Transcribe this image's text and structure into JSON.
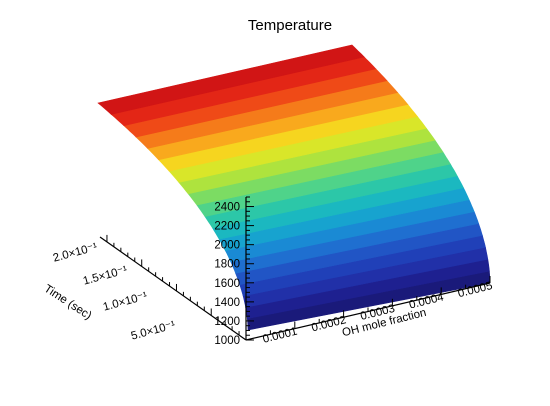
{
  "chart_data": {
    "type": "surface",
    "title": "Temperature",
    "xlabel": "OH mole fraction",
    "ylabel": "Time (sec)",
    "zlabel": "",
    "x_ticks": [
      "0.0001",
      "0.0002",
      "0.0003",
      "0.0004",
      "0.0005"
    ],
    "y_ticks": [
      "5.0×10⁻¹",
      "1.0×10⁻¹",
      "1.5×10⁻¹",
      "2.0×10⁻¹"
    ],
    "z_ticks": [
      1000,
      1200,
      1400,
      1600,
      1800,
      2000,
      2200,
      2400
    ],
    "xlim": [
      0,
      0.0005
    ],
    "zlim": [
      1000,
      2500
    ],
    "colormap": "rainbow",
    "bands": [
      {
        "value": 1000,
        "color": "#1a1a7a"
      },
      {
        "value": 1100,
        "color": "#1e2090"
      },
      {
        "value": 1200,
        "color": "#2130a8"
      },
      {
        "value": 1300,
        "color": "#2040b8"
      },
      {
        "value": 1400,
        "color": "#2155c5"
      },
      {
        "value": 1500,
        "color": "#1f6fd0"
      },
      {
        "value": 1600,
        "color": "#1a8ad4"
      },
      {
        "value": 1700,
        "color": "#17a3cf"
      },
      {
        "value": 1800,
        "color": "#1bb8c0"
      },
      {
        "value": 1900,
        "color": "#2cc7a8"
      },
      {
        "value": 2000,
        "color": "#4fd38a"
      },
      {
        "value": 2100,
        "color": "#7cdc63"
      },
      {
        "value": 2200,
        "color": "#aee33e"
      },
      {
        "value": 2300,
        "color": "#d9e629"
      },
      {
        "value": 2400,
        "color": "#f6d51f"
      },
      {
        "value": 2450,
        "color": "#f9a91d"
      },
      {
        "value": 2480,
        "color": "#f57b1a"
      },
      {
        "value": 2500,
        "color": "#ef4a17"
      },
      {
        "value": 2510,
        "color": "#e32616"
      },
      {
        "value": 2520,
        "color": "#d11515"
      }
    ]
  }
}
